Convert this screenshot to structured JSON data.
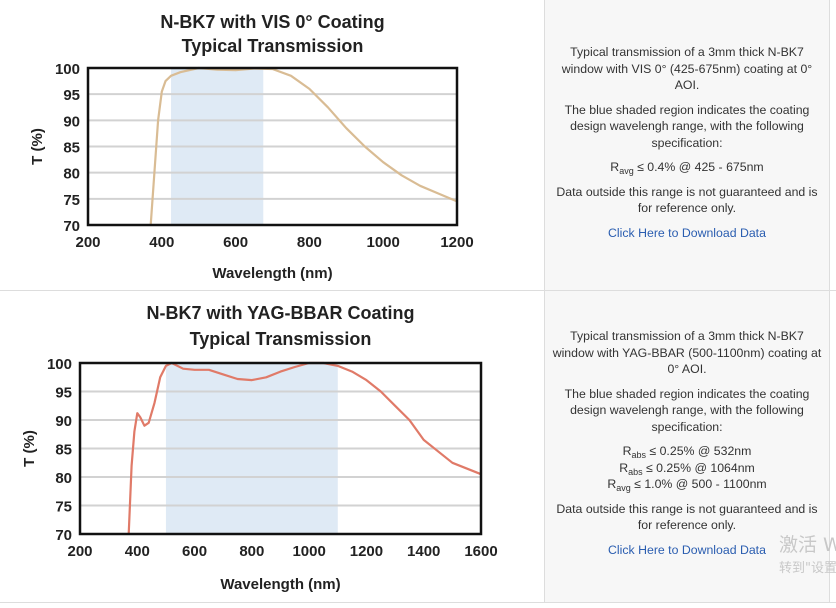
{
  "chart_data": [
    {
      "type": "line",
      "title": "N-BK7 with VIS 0° Coating",
      "subtitle": "Typical Transmission",
      "xlabel": "Wavelength (nm)",
      "ylabel": "T (%)",
      "xlim": [
        200,
        1200
      ],
      "ylim": [
        70,
        100
      ],
      "xticks": [
        "200",
        "400",
        "600",
        "800",
        "1000",
        "1200"
      ],
      "yticks": [
        "70",
        "75",
        "80",
        "85",
        "90",
        "95",
        "100"
      ],
      "grid": true,
      "shaded_region": [
        425,
        675
      ],
      "shade_color": "#dfeaf5",
      "line_color": "#d9bc94",
      "x": [
        370,
        380,
        390,
        400,
        410,
        425,
        450,
        500,
        550,
        600,
        650,
        700,
        750,
        800,
        850,
        900,
        950,
        1000,
        1050,
        1100,
        1150,
        1200
      ],
      "y": [
        70,
        80,
        90,
        95.5,
        97.5,
        98.5,
        99.2,
        100,
        99.7,
        99.6,
        99.9,
        99.8,
        98.5,
        96,
        92.5,
        88.5,
        85,
        82,
        79.5,
        77.5,
        76,
        74.5
      ]
    },
    {
      "type": "line",
      "title": "N-BK7 with YAG-BBAR Coating",
      "subtitle": "Typical Transmission",
      "xlabel": "Wavelength (nm)",
      "ylabel": "T (%)",
      "xlim": [
        200,
        1600
      ],
      "ylim": [
        70,
        100
      ],
      "xticks": [
        "200",
        "400",
        "600",
        "800",
        "1000",
        "1200",
        "1400",
        "1600"
      ],
      "yticks": [
        "70",
        "75",
        "80",
        "85",
        "90",
        "95",
        "100"
      ],
      "grid": true,
      "shaded_region": [
        500,
        1100
      ],
      "shade_color": "#dfeaf5",
      "line_color": "#e07a68",
      "x": [
        370,
        380,
        390,
        400,
        410,
        425,
        440,
        460,
        480,
        500,
        520,
        560,
        600,
        650,
        700,
        750,
        800,
        850,
        900,
        950,
        1000,
        1050,
        1100,
        1150,
        1200,
        1250,
        1300,
        1350,
        1400,
        1450,
        1500,
        1600
      ],
      "y": [
        70,
        82,
        88,
        91.2,
        90.5,
        89,
        89.5,
        93,
        97.5,
        99.5,
        100,
        99,
        98.8,
        98.8,
        98,
        97.2,
        97,
        97.5,
        98.5,
        99.3,
        100,
        100,
        99.5,
        98.5,
        97,
        95,
        92.5,
        90,
        86.5,
        84.5,
        82.5,
        80.5
      ]
    }
  ],
  "descriptions": [
    {
      "intro": "Typical transmission of a 3mm thick N-BK7 window with VIS 0° (425-675nm) coating at 0° AOI.",
      "shade_note": "The blue shaded region indicates the coating design wavelengh range, with the following specification:",
      "specs": [
        {
          "sym": "R",
          "sub": "avg",
          "text": " ≤ 0.4% @ 425 - 675nm"
        }
      ],
      "disclaimer": "Data outside this range is not guaranteed and is for reference only.",
      "download": "Click Here to Download Data"
    },
    {
      "intro": "Typical transmission of a 3mm thick N-BK7 window with YAG-BBAR (500-1100nm) coating at 0° AOI.",
      "shade_note": "The blue shaded region indicates the coating design wavelengh range, with the following specification:",
      "specs": [
        {
          "sym": "R",
          "sub": "abs",
          "text": " ≤ 0.25% @ 532nm"
        },
        {
          "sym": "R",
          "sub": "abs",
          "text": " ≤ 0.25% @ 1064nm"
        },
        {
          "sym": "R",
          "sub": "avg",
          "text": " ≤ 1.0% @ 500 - 1100nm"
        }
      ],
      "disclaimer": "Data outside this range is not guaranteed and is for reference only.",
      "download": "Click Here to Download Data"
    }
  ],
  "watermark": {
    "line1": "激活 W",
    "line2": "转到\"设置"
  }
}
